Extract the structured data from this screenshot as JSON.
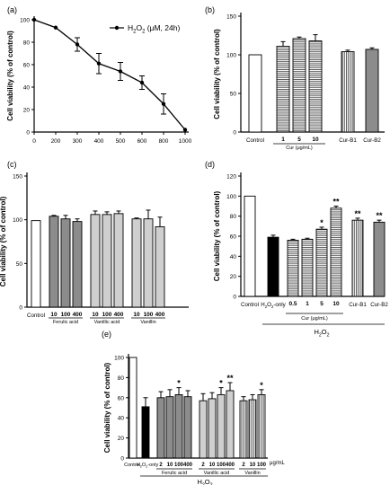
{
  "chart_data": [
    {
      "panel": "(a)",
      "type": "line",
      "x": [
        0,
        200,
        300,
        400,
        500,
        600,
        800,
        1000
      ],
      "y": [
        100,
        93,
        78,
        61,
        54,
        44,
        25,
        2
      ],
      "err": [
        0,
        0,
        6,
        9,
        8,
        6,
        9,
        0
      ],
      "ylim": [
        0,
        100
      ],
      "yticks": [
        0,
        20,
        40,
        60,
        80,
        100
      ],
      "xticks": [
        "0",
        "200",
        "300",
        "400",
        "500",
        "600",
        "800",
        "1000"
      ],
      "ylabel": "Cell viability (% of control)",
      "legend": "H2O2 (μM, 24h)",
      "legend_position": "top-right"
    },
    {
      "panel": "(b)",
      "type": "bar",
      "categories": [
        "Control",
        "1",
        "5",
        "10",
        "Cur-B1",
        "Cur-B2"
      ],
      "values": [
        100,
        111,
        121,
        118,
        104,
        107
      ],
      "err": [
        0,
        6,
        2,
        8,
        2,
        2
      ],
      "fills": [
        "white",
        "hlines",
        "hlines",
        "hlines",
        "vlines",
        "dark"
      ],
      "ylim": [
        0,
        150
      ],
      "yticks": [
        0,
        50,
        100,
        150
      ],
      "ylabel": "Cell viability (% of control)",
      "group_labels": [
        {
          "text": "Cur (μg/mL)"
        }
      ],
      "stars": []
    },
    {
      "panel": "(c)",
      "type": "bar",
      "categories": [
        "Control",
        "10",
        "100",
        "400",
        "10",
        "100",
        "400",
        "10",
        "100",
        "400"
      ],
      "values": [
        99,
        104,
        101,
        98,
        106,
        106,
        107,
        101,
        101,
        92
      ],
      "err": [
        0,
        1,
        4,
        3,
        4,
        3,
        3,
        1,
        10,
        11
      ],
      "fills": [
        "white",
        "dark",
        "dark",
        "dark",
        "light",
        "light",
        "light",
        "light",
        "light",
        "light"
      ],
      "ylim": [
        0,
        150
      ],
      "yticks": [
        0,
        50,
        100,
        150
      ],
      "ylabel": "Cell viability (% of control)",
      "group_labels": [
        {
          "text": "Ferulic acid"
        },
        {
          "text": "Vanillic acid"
        },
        {
          "text": "Vanillin"
        }
      ],
      "stars": []
    },
    {
      "panel": "(d)",
      "type": "bar",
      "categories": [
        "Control",
        "H2O2-only",
        "0.5",
        "1",
        "5",
        "10",
        "Cur-B1",
        "Cur-B2"
      ],
      "values": [
        100,
        59,
        56,
        57,
        67,
        88,
        76,
        74
      ],
      "err": [
        0,
        2,
        1,
        1,
        2,
        2,
        2,
        2
      ],
      "fills": [
        "white",
        "black",
        "hlines",
        "hlines",
        "hlines",
        "hlines",
        "vlines",
        "dark"
      ],
      "ylim": [
        0,
        120
      ],
      "yticks": [
        0,
        20,
        40,
        60,
        80,
        100,
        120
      ],
      "ylabel": "Cell viability (% of control)",
      "group_labels": [
        {
          "text": "Cur (μg/mL)"
        }
      ],
      "bracket_label": "H2O2",
      "stars": [
        "",
        "",
        "",
        "",
        "*",
        "**",
        "**",
        "**"
      ]
    },
    {
      "panel": "(e)",
      "type": "bar",
      "categories": [
        "Control",
        "H2O2-only",
        "2",
        "10",
        "100",
        "400",
        "2",
        "10",
        "100",
        "400",
        "2",
        "10",
        "100"
      ],
      "values": [
        100,
        51,
        60,
        61,
        63,
        61,
        57,
        59,
        63,
        67,
        57,
        58,
        63
      ],
      "err": [
        0,
        9,
        6,
        7,
        7,
        6,
        7,
        6,
        7,
        8,
        4,
        5,
        5
      ],
      "fills": [
        "white",
        "black",
        "dark",
        "dark",
        "dark",
        "dark",
        "light",
        "light",
        "light",
        "light",
        "vlines",
        "vlines",
        "vlines"
      ],
      "ylim": [
        0,
        100
      ],
      "yticks": [
        0,
        20,
        40,
        60,
        80,
        100
      ],
      "ylabel": "Cell viability (% of control)",
      "group_labels": [
        {
          "text": "Ferulic acid"
        },
        {
          "text": "Vanillic acid"
        },
        {
          "text": "Vanillin"
        }
      ],
      "unit_label": "μg/mL",
      "bracket_label": "H2O2",
      "stars": [
        "",
        "",
        "",
        "",
        "*",
        "",
        "",
        "",
        "*",
        "**",
        "",
        "",
        "*"
      ]
    }
  ]
}
